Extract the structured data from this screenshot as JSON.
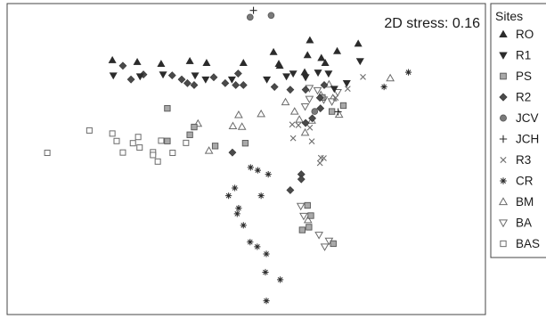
{
  "chart_data": {
    "type": "scatter",
    "title": "",
    "xlabel": "",
    "ylabel": "",
    "annotation": "2D stress: 0.16",
    "axes": "none",
    "grid": false,
    "legend_placement": "right",
    "legend_title": "Sites",
    "xlim": [
      0,
      100
    ],
    "ylim": [
      0,
      100
    ],
    "colors": {
      "dark": "#2b2b2b",
      "mid": "#6b6b6b",
      "grey_fill": "#a9a9a9",
      "open": "#ffffff"
    },
    "series": [
      {
        "name": "RO",
        "marker": "triangle-up-filled",
        "points": [
          [
            22,
            81.8
          ],
          [
            27.2,
            81.2
          ],
          [
            32.2,
            80.6
          ],
          [
            38.2,
            81.5
          ],
          [
            41.7,
            80.9
          ],
          [
            49.4,
            80.9
          ],
          [
            56.8,
            80.6
          ],
          [
            63.3,
            88.2
          ],
          [
            55.7,
            84.4
          ],
          [
            62.8,
            83.4
          ],
          [
            65.7,
            82.5
          ],
          [
            73.4,
            87.1
          ],
          [
            69,
            84.7
          ],
          [
            66.5,
            80.9
          ],
          [
            62.2,
            77.9
          ],
          [
            57,
            80
          ]
        ]
      },
      {
        "name": "R1",
        "marker": "triangle-down-filled",
        "points": [
          [
            22.2,
            76.9
          ],
          [
            27.8,
            76.6
          ],
          [
            32.6,
            77.2
          ],
          [
            39.3,
            76.9
          ],
          [
            41.5,
            75.6
          ],
          [
            47,
            75.6
          ],
          [
            54.3,
            75.6
          ],
          [
            58.4,
            76.6
          ],
          [
            59.8,
            77.5
          ],
          [
            62.4,
            76.3
          ],
          [
            65,
            77.8
          ],
          [
            67.2,
            77.5
          ],
          [
            73.8,
            81.5
          ],
          [
            71,
            74.4
          ],
          [
            68.4,
            72.6
          ]
        ]
      },
      {
        "name": "PS",
        "marker": "square-filled",
        "points": [
          [
            33.5,
            66.3
          ],
          [
            39.1,
            60.3
          ],
          [
            38.2,
            57.8
          ],
          [
            33.5,
            55.8
          ],
          [
            43.5,
            54.2
          ],
          [
            49.8,
            55.1
          ],
          [
            62.8,
            35.1
          ],
          [
            63.5,
            31.8
          ],
          [
            63.1,
            28.1
          ],
          [
            61.7,
            27.2
          ],
          [
            68.2,
            22.8
          ],
          [
            70.3,
            67.2
          ],
          [
            65.9,
            69.8
          ],
          [
            67.9,
            65.3
          ]
        ]
      },
      {
        "name": "R2",
        "marker": "diamond-filled",
        "points": [
          [
            24.2,
            80
          ],
          [
            25.9,
            75.6
          ],
          [
            28.5,
            77.2
          ],
          [
            34.5,
            76.9
          ],
          [
            36.5,
            75.6
          ],
          [
            37.7,
            74.4
          ],
          [
            39.1,
            73.8
          ],
          [
            43.2,
            76.3
          ],
          [
            45.6,
            74.4
          ],
          [
            47.8,
            73.8
          ],
          [
            48.3,
            77.5
          ],
          [
            49.4,
            73.8
          ],
          [
            55.9,
            73.2
          ],
          [
            59.2,
            72.3
          ],
          [
            62.4,
            72.3
          ],
          [
            65.5,
            66.3
          ],
          [
            65.4,
            69.7
          ],
          [
            63.8,
            63.1
          ],
          [
            62.4,
            61.6
          ],
          [
            47.1,
            52.1
          ],
          [
            61.5,
            45.1
          ],
          [
            59.2,
            40
          ],
          [
            61.5,
            43.5
          ],
          [
            66.3,
            73.8
          ]
        ]
      },
      {
        "name": "JCV",
        "marker": "circle-filled",
        "points": [
          [
            50.8,
            95.6
          ],
          [
            55.2,
            96.2
          ],
          [
            64.3,
            65.3
          ]
        ]
      },
      {
        "name": "JCH",
        "marker": "plus",
        "points": [
          [
            51.5,
            97.8
          ],
          [
            69.2,
            65.2
          ]
        ]
      },
      {
        "name": "R3",
        "marker": "cross",
        "points": [
          [
            68.7,
            69.7
          ],
          [
            71.2,
            72.6
          ],
          [
            74.4,
            76.4
          ],
          [
            66.2,
            50.3
          ],
          [
            65.6,
            50.4
          ],
          [
            63.7,
            55.7
          ],
          [
            63.3,
            60.1
          ],
          [
            60.9,
            60.9
          ],
          [
            59.6,
            61.1
          ],
          [
            59.8,
            56.7
          ],
          [
            65.4,
            48.7
          ]
        ]
      },
      {
        "name": "CR",
        "marker": "asterisk",
        "points": [
          [
            83.9,
            77.9
          ],
          [
            78.8,
            73.2
          ],
          [
            50.9,
            47.3
          ],
          [
            52.4,
            46.4
          ],
          [
            54.6,
            45.1
          ],
          [
            53.1,
            38.2
          ],
          [
            46.3,
            38.2
          ],
          [
            47.6,
            40.7
          ],
          [
            48.4,
            34.2
          ],
          [
            48.1,
            32.4
          ],
          [
            49.4,
            28.7
          ],
          [
            50.8,
            23.3
          ],
          [
            52.3,
            21.8
          ],
          [
            54.2,
            19.5
          ],
          [
            54.2,
            4.4
          ],
          [
            57.1,
            11.2
          ],
          [
            54,
            13.6
          ]
        ]
      },
      {
        "name": "BM",
        "marker": "triangle-up-open",
        "points": [
          [
            80.1,
            76
          ],
          [
            42.2,
            52.7
          ],
          [
            39.9,
            61.4
          ],
          [
            47.2,
            60.6
          ],
          [
            49.1,
            60.4
          ],
          [
            48.4,
            64.2
          ],
          [
            53.1,
            64.5
          ],
          [
            58.2,
            68.3
          ],
          [
            60.1,
            65.3
          ],
          [
            65.6,
            70.6
          ],
          [
            67.3,
            74
          ],
          [
            68.1,
            69.6
          ],
          [
            61.1,
            62.7
          ],
          [
            62.3,
            58.5
          ],
          [
            63.7,
            62.4
          ],
          [
            69.4,
            64.3
          ],
          [
            62.9,
            30.4
          ]
        ]
      },
      {
        "name": "BA",
        "marker": "triangle-down-open",
        "points": [
          [
            62.3,
            66.9
          ],
          [
            63.2,
            69.3
          ],
          [
            63.2,
            72.8
          ],
          [
            69.1,
            71.5
          ],
          [
            66.2,
            69.1
          ],
          [
            64.9,
            72.1
          ],
          [
            67.9,
            68.5
          ],
          [
            61.4,
            34.9
          ],
          [
            62,
            31.7
          ],
          [
            65.2,
            25.6
          ],
          [
            66.4,
            21.8
          ],
          [
            67.3,
            23.7
          ]
        ]
      },
      {
        "name": "BAS",
        "marker": "square-open",
        "points": [
          [
            17.2,
            59.2
          ],
          [
            22,
            58.2
          ],
          [
            22.9,
            55.8
          ],
          [
            27.4,
            57.1
          ],
          [
            32.2,
            55.9
          ],
          [
            37.4,
            55.2
          ],
          [
            26.3,
            55.1
          ],
          [
            27.7,
            53.7
          ],
          [
            30.5,
            52.2
          ],
          [
            31.5,
            49.2
          ],
          [
            30.5,
            51.3
          ],
          [
            34.6,
            52
          ],
          [
            24.2,
            52.1
          ],
          [
            8.4,
            52
          ]
        ]
      }
    ]
  }
}
